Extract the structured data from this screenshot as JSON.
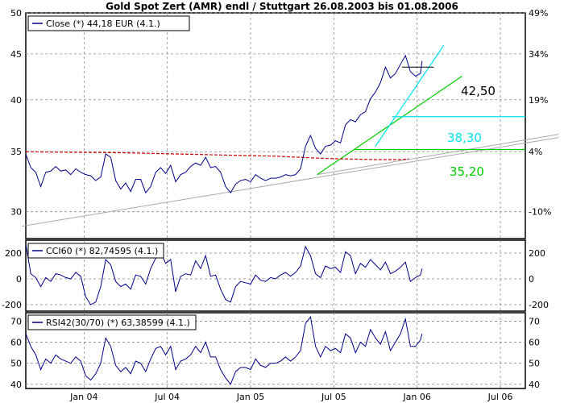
{
  "chart_data": [
    {
      "type": "line",
      "panel": "price",
      "title": "Gold Spot Zert (AMR) endl / Stuttgart 26.08.2003 bis 01.08.2006",
      "legend": "Close (*) 44,18 EUR (4.1.)",
      "left_ticks": [
        "50",
        "45",
        "40",
        "35",
        "30"
      ],
      "right_ticks": [
        "49%",
        "34%",
        "19%",
        "4%",
        "-10%"
      ],
      "x_tick_labels": [
        "Jan 04",
        "Jul 04",
        "Jan 05",
        "Jul 05",
        "Jan 06",
        "Jul 06"
      ],
      "ylim": [
        28,
        50
      ],
      "log_scale": true,
      "grid": true,
      "series": [
        {
          "color": "#00008b",
          "x": [
            0,
            6,
            12,
            18,
            24,
            30,
            36,
            42,
            48,
            54,
            60,
            66,
            72,
            78,
            84,
            90,
            96,
            102,
            108,
            114,
            120,
            126,
            132,
            138,
            144,
            150,
            156,
            162,
            168,
            174,
            180,
            186,
            192,
            198,
            204,
            210,
            216,
            222,
            228,
            234,
            240,
            246,
            252,
            258,
            264,
            270,
            276,
            282,
            288,
            294,
            300,
            306,
            312,
            318,
            324,
            330,
            336,
            342,
            348,
            354,
            360,
            366,
            372,
            378,
            384,
            390,
            396,
            402,
            408,
            414,
            420,
            426,
            432,
            438,
            444,
            450,
            456,
            462,
            468,
            474,
            476
          ],
          "values": [
            34.8,
            33.6,
            33.2,
            32.0,
            33.2,
            33.3,
            33.7,
            33.3,
            33.4,
            33.0,
            33.5,
            33.2,
            33.0,
            32.9,
            32.5,
            32.8,
            34.8,
            34.5,
            32.5,
            31.8,
            32.3,
            31.6,
            32.6,
            32.6,
            31.5,
            32.0,
            33.2,
            33.6,
            33.1,
            33.8,
            32.4,
            33.0,
            33.2,
            33.7,
            34.0,
            33.8,
            34.5,
            33.6,
            33.7,
            33.2,
            32.0,
            31.5,
            32.2,
            32.5,
            32.6,
            32.4,
            33.0,
            32.7,
            32.5,
            32.7,
            32.7,
            32.8,
            33.0,
            32.9,
            33.0,
            33.5,
            35.5,
            36.5,
            35.3,
            34.8,
            35.5,
            35.6,
            36.0,
            35.8,
            37.5,
            38.0,
            37.8,
            38.5,
            38.8,
            40.1,
            40.8,
            41.8,
            43.5,
            42.3,
            42.8,
            43.8,
            44.8,
            43.0,
            42.5,
            42.8,
            44.2
          ]
        }
      ],
      "moving_average": {
        "color": "#cc0000",
        "x": [
          0,
          30,
          60,
          90,
          120,
          150,
          180,
          210,
          240,
          270,
          300,
          330,
          360,
          390,
          420,
          450,
          460
        ],
        "values": [
          35.0,
          34.97,
          34.95,
          34.93,
          34.9,
          34.85,
          34.8,
          34.75,
          34.7,
          34.65,
          34.6,
          34.5,
          34.4,
          34.35,
          34.3,
          34.3,
          34.35
        ]
      },
      "annotations": [
        {
          "text": "42,50",
          "value": 42.5,
          "color": "#000000"
        },
        {
          "text": "38,30",
          "value": 38.3,
          "color": "#00e5ee"
        },
        {
          "text": "35,20",
          "value": 35.2,
          "color": "#00cc00"
        }
      ]
    },
    {
      "type": "line",
      "panel": "cci",
      "legend": "CCI60 (*) 82,74595 (4.1.)",
      "left_ticks": [
        "200",
        "0",
        "-200"
      ],
      "right_ticks": [
        "200",
        "0",
        "-200"
      ],
      "ylim": [
        -250,
        300
      ],
      "grid": true,
      "series": [
        {
          "color": "#00008b",
          "x": [
            0,
            6,
            12,
            18,
            24,
            30,
            36,
            42,
            48,
            54,
            60,
            66,
            72,
            78,
            84,
            90,
            96,
            102,
            108,
            114,
            120,
            126,
            132,
            138,
            144,
            150,
            156,
            162,
            168,
            174,
            180,
            186,
            192,
            198,
            204,
            210,
            216,
            222,
            228,
            234,
            240,
            246,
            252,
            258,
            264,
            270,
            276,
            282,
            288,
            294,
            300,
            306,
            312,
            318,
            324,
            330,
            336,
            342,
            348,
            354,
            360,
            366,
            372,
            378,
            384,
            390,
            396,
            402,
            408,
            414,
            420,
            426,
            432,
            438,
            444,
            450,
            456,
            462,
            468,
            474,
            476
          ],
          "values": [
            270,
            40,
            10,
            -60,
            10,
            -20,
            40,
            30,
            10,
            0,
            50,
            20,
            -140,
            -200,
            -180,
            -60,
            150,
            110,
            -20,
            -60,
            -40,
            -80,
            30,
            20,
            -40,
            80,
            160,
            210,
            120,
            150,
            -100,
            20,
            40,
            30,
            140,
            80,
            180,
            20,
            30,
            -80,
            -160,
            -180,
            -60,
            -20,
            -30,
            -40,
            30,
            -10,
            -20,
            10,
            0,
            30,
            50,
            20,
            50,
            100,
            250,
            180,
            40,
            10,
            100,
            80,
            90,
            50,
            210,
            180,
            40,
            120,
            90,
            150,
            110,
            70,
            130,
            40,
            60,
            90,
            130,
            -20,
            10,
            30,
            80
          ]
        }
      ]
    },
    {
      "type": "line",
      "panel": "rsi",
      "legend": "RSI42(30/70) (*) 63,38599 (4.1.)",
      "left_ticks": [
        "70",
        "60",
        "50",
        "40"
      ],
      "right_ticks": [
        "70",
        "60",
        "50",
        "40"
      ],
      "ylim": [
        38,
        74
      ],
      "grid": true,
      "series": [
        {
          "color": "#00008b",
          "x": [
            0,
            6,
            12,
            18,
            24,
            30,
            36,
            42,
            48,
            54,
            60,
            66,
            72,
            78,
            84,
            90,
            96,
            102,
            108,
            114,
            120,
            126,
            132,
            138,
            144,
            150,
            156,
            162,
            168,
            174,
            180,
            186,
            192,
            198,
            204,
            210,
            216,
            222,
            228,
            234,
            240,
            246,
            252,
            258,
            264,
            270,
            276,
            282,
            288,
            294,
            300,
            306,
            312,
            318,
            324,
            330,
            336,
            342,
            348,
            354,
            360,
            366,
            372,
            378,
            384,
            390,
            396,
            402,
            408,
            414,
            420,
            426,
            432,
            438,
            444,
            450,
            456,
            462,
            468,
            474,
            476
          ],
          "values": [
            64,
            58,
            54,
            47,
            52,
            50,
            54,
            52,
            51,
            50,
            53,
            51,
            44,
            42,
            45,
            50,
            62,
            58,
            49,
            46,
            48,
            45,
            51,
            50,
            46,
            52,
            57,
            58,
            54,
            58,
            47,
            51,
            52,
            54,
            58,
            55,
            60,
            53,
            53,
            47,
            43,
            40,
            46,
            48,
            48,
            47,
            52,
            49,
            48,
            50,
            50,
            51,
            53,
            51,
            53,
            56,
            69,
            72,
            58,
            53,
            58,
            56,
            57,
            55,
            64,
            62,
            55,
            60,
            58,
            66,
            62,
            59,
            65,
            56,
            60,
            64,
            71,
            58,
            58,
            61,
            64
          ]
        }
      ]
    }
  ],
  "x_axis": {
    "domain": [
      0,
      600
    ],
    "tick_positions": [
      70,
      170,
      270,
      370,
      470,
      570
    ]
  },
  "trendlines": {
    "gray_color": "#a9a9a9",
    "cyan_color": "#00e5ee",
    "green_color": "#00cc00",
    "black_color": "#000000"
  }
}
